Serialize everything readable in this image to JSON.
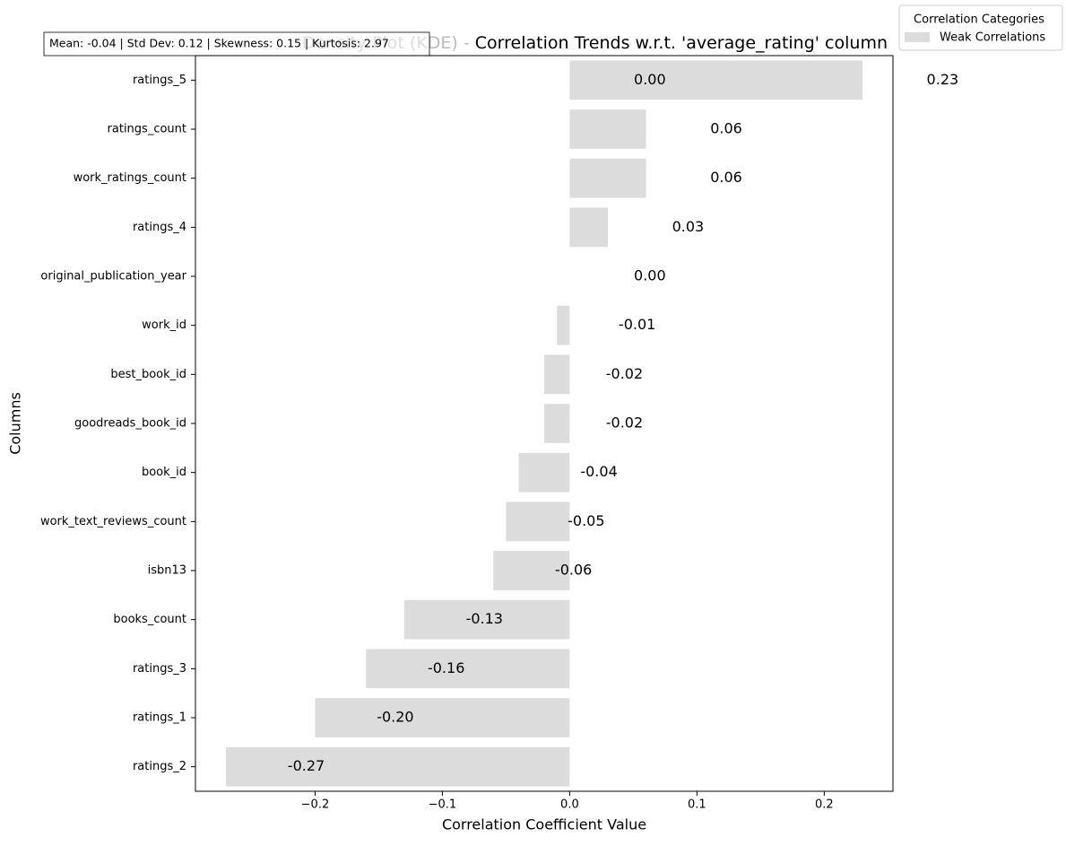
{
  "chart_data": {
    "type": "barh",
    "title_prefix": "Density Plot (KDE) - ",
    "title": "Correlation Trends w.r.t. 'average_rating' column",
    "stats_box": "Mean: -0.04 | Std Dev: 0.12 | Skewness: 0.15 | Kurtosis: 2.97",
    "xlabel": "Correlation Coefficient Value",
    "ylabel": "Columns",
    "legend_title": "Correlation Categories",
    "legend_corner": "upper right",
    "series": [
      {
        "name": "Weak Correlations",
        "color": "#dcdcdc",
        "values": [
          0.23,
          0.06,
          0.06,
          0.03,
          0.0,
          -0.01,
          -0.02,
          -0.02,
          -0.04,
          -0.05,
          -0.06,
          -0.13,
          -0.16,
          -0.2,
          -0.27
        ],
        "value_labels": [
          "0.23",
          "0.06",
          "0.06",
          "0.03",
          "0.00",
          "-0.01",
          "-0.02",
          "-0.02",
          "-0.04",
          "-0.05",
          "-0.06",
          "-0.13",
          "-0.16",
          "-0.20",
          "-0.27"
        ]
      }
    ],
    "categories": [
      "ratings_5",
      "ratings_count",
      "work_ratings_count",
      "ratings_4",
      "original_publication_year",
      "work_id",
      "best_book_id",
      "goodreads_book_id",
      "book_id",
      "work_text_reviews_count",
      "isbn13",
      "books_count",
      "ratings_3",
      "ratings_1",
      "ratings_2"
    ],
    "stray_label": "0.00",
    "xlim": [
      -0.294,
      0.254
    ],
    "xticks": [
      {
        "value": -0.2,
        "label": "−0.2"
      },
      {
        "value": -0.1,
        "label": "−0.1"
      },
      {
        "value": 0,
        "label": "0.0"
      },
      0.1,
      0.2
    ]
  }
}
